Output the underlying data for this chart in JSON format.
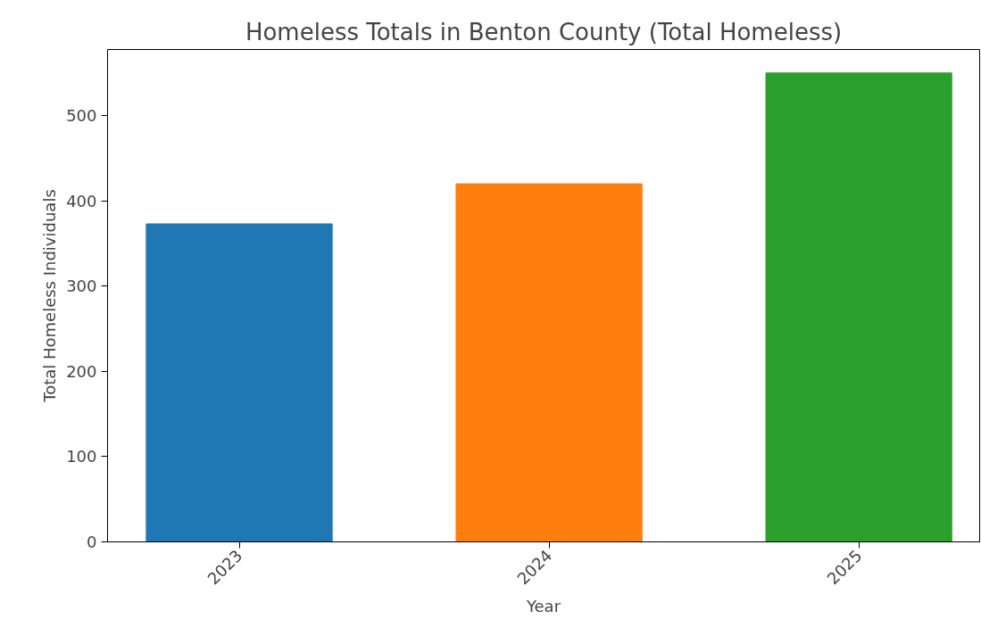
{
  "chart_data": {
    "type": "bar",
    "title": "Homeless Totals in Benton County (Total Homeless)",
    "xlabel": "Year",
    "ylabel": "Total Homeless Individuals",
    "categories": [
      "2023",
      "2024",
      "2025"
    ],
    "values": [
      373,
      420,
      550
    ],
    "colors": [
      "#1f77b4",
      "#ff7f0e",
      "#2ca02c"
    ],
    "ylim": [
      0,
      577.5
    ],
    "yticks": [
      0,
      100,
      200,
      300,
      400,
      500
    ],
    "grid": false
  }
}
